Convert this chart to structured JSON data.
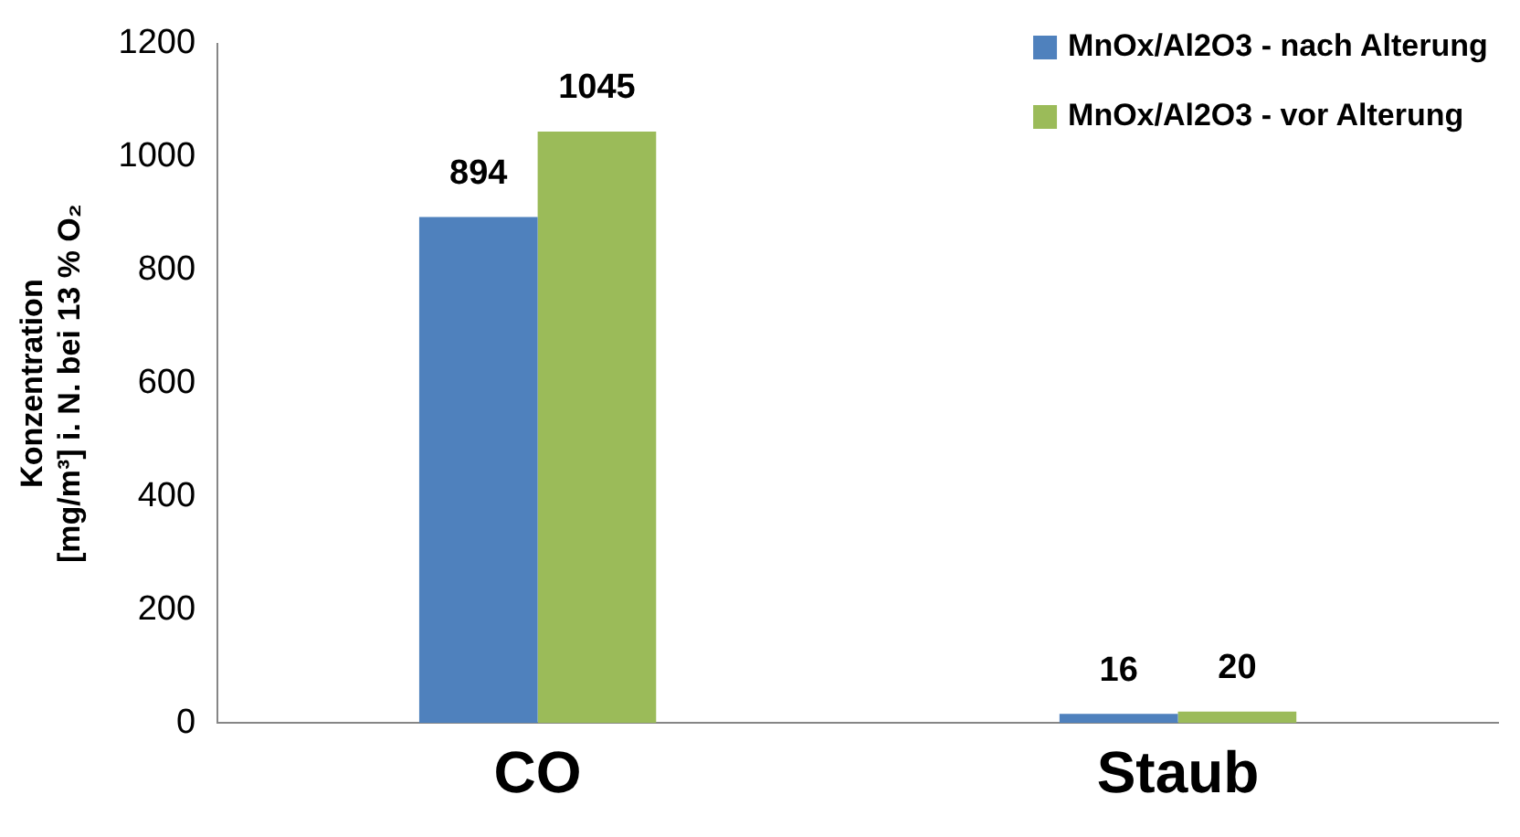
{
  "chart_data": {
    "type": "bar",
    "ylabel": "Konzentration\n[mg/m³] i. N. bei 13 % O₂",
    "categories": [
      "CO",
      "Staub"
    ],
    "series": [
      {
        "name": "MnOx/Al2O3 - nach Alterung",
        "color": "#4f81bd",
        "values": [
          894,
          16
        ]
      },
      {
        "name": "MnOx/Al2O3 - vor Alterung",
        "color": "#9bbb59",
        "values": [
          1045,
          20
        ]
      }
    ],
    "ylim": [
      0,
      1200
    ],
    "yticks": [
      0,
      200,
      400,
      600,
      800,
      1000,
      1200
    ],
    "grid": false,
    "legend": "top right",
    "data_labels": true
  }
}
